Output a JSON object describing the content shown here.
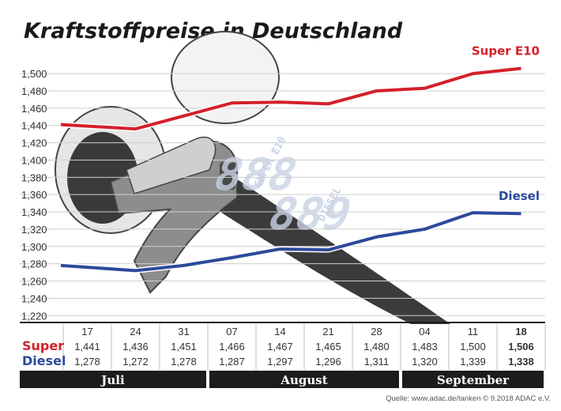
{
  "chart_data": {
    "type": "line",
    "title": "Kraftstoffpreise in Deutschland",
    "categories": [
      "17",
      "24",
      "31",
      "07",
      "14",
      "21",
      "28",
      "04",
      "11",
      "18"
    ],
    "months": [
      {
        "label": "Juli",
        "start": 0,
        "end": 2
      },
      {
        "label": "August",
        "start": 3,
        "end": 6
      },
      {
        "label": "September",
        "start": 7,
        "end": 9
      }
    ],
    "yticks": [
      "1,220",
      "1,240",
      "1,260",
      "1,280",
      "1,300",
      "1,320",
      "1,340",
      "1,360",
      "1,380",
      "1,400",
      "1,420",
      "1,440",
      "1,460",
      "1,480",
      "1,500"
    ],
    "ylim": [
      1.212,
      1.512
    ],
    "grid": true,
    "series": [
      {
        "name": "Super E10",
        "row_label": "Super",
        "color": "#d4202a",
        "values": [
          1.441,
          1.436,
          1.451,
          1.466,
          1.467,
          1.465,
          1.48,
          1.483,
          1.5,
          1.506
        ],
        "labels": [
          "1,441",
          "1,436",
          "1,451",
          "1,466",
          "1,467",
          "1,465",
          "1,480",
          "1,483",
          "1,500",
          "1,506"
        ]
      },
      {
        "name": "Diesel",
        "row_label": "Diesel",
        "color": "#2b4a9b",
        "values": [
          1.278,
          1.272,
          1.278,
          1.287,
          1.297,
          1.296,
          1.311,
          1.32,
          1.339,
          1.338
        ],
        "labels": [
          "1,278",
          "1,272",
          "1,278",
          "1,287",
          "1,297",
          "1,296",
          "1,311",
          "1,320",
          "1,339",
          "1,338"
        ]
      }
    ]
  },
  "illustration": {
    "label_super": "SUPER E10",
    "label_diesel": "DIESEL",
    "digits_super": "888",
    "digits_diesel": "889"
  },
  "footer": {
    "source": "Quelle: www.adac.de/tanken  © 9.2018  ADAC e.V."
  }
}
